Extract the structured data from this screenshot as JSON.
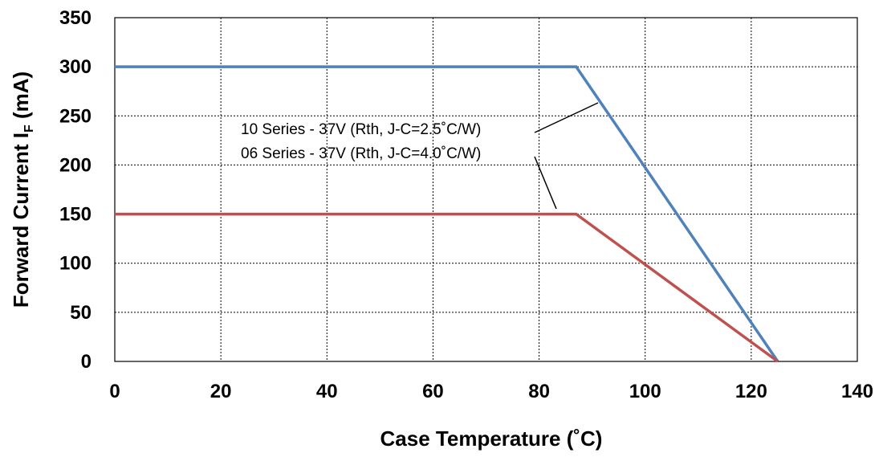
{
  "chart_data": {
    "type": "line",
    "xlabel": "Case Temperature (˚C)",
    "ylabel_main": "Forward Current I",
    "ylabel_sub": "F",
    "ylabel_unit": " (mA)",
    "xlim": [
      0,
      140
    ],
    "ylim": [
      0,
      350
    ],
    "x_ticks": [
      0,
      20,
      40,
      60,
      80,
      100,
      120,
      140
    ],
    "y_ticks": [
      0,
      50,
      100,
      150,
      200,
      250,
      300,
      350
    ],
    "grid": true,
    "series": [
      {
        "label": "10 Series - 37V (Rth, J-C=2.5˚C/W)",
        "color": "#4f81bd",
        "points": [
          [
            0,
            300
          ],
          [
            87,
            300
          ],
          [
            125,
            0
          ]
        ]
      },
      {
        "label": "06 Series - 37V (Rth, J-C=4.0˚C/W)",
        "color": "#c0504d",
        "points": [
          [
            0,
            150
          ],
          [
            87,
            150
          ],
          [
            125,
            0
          ]
        ]
      }
    ]
  }
}
